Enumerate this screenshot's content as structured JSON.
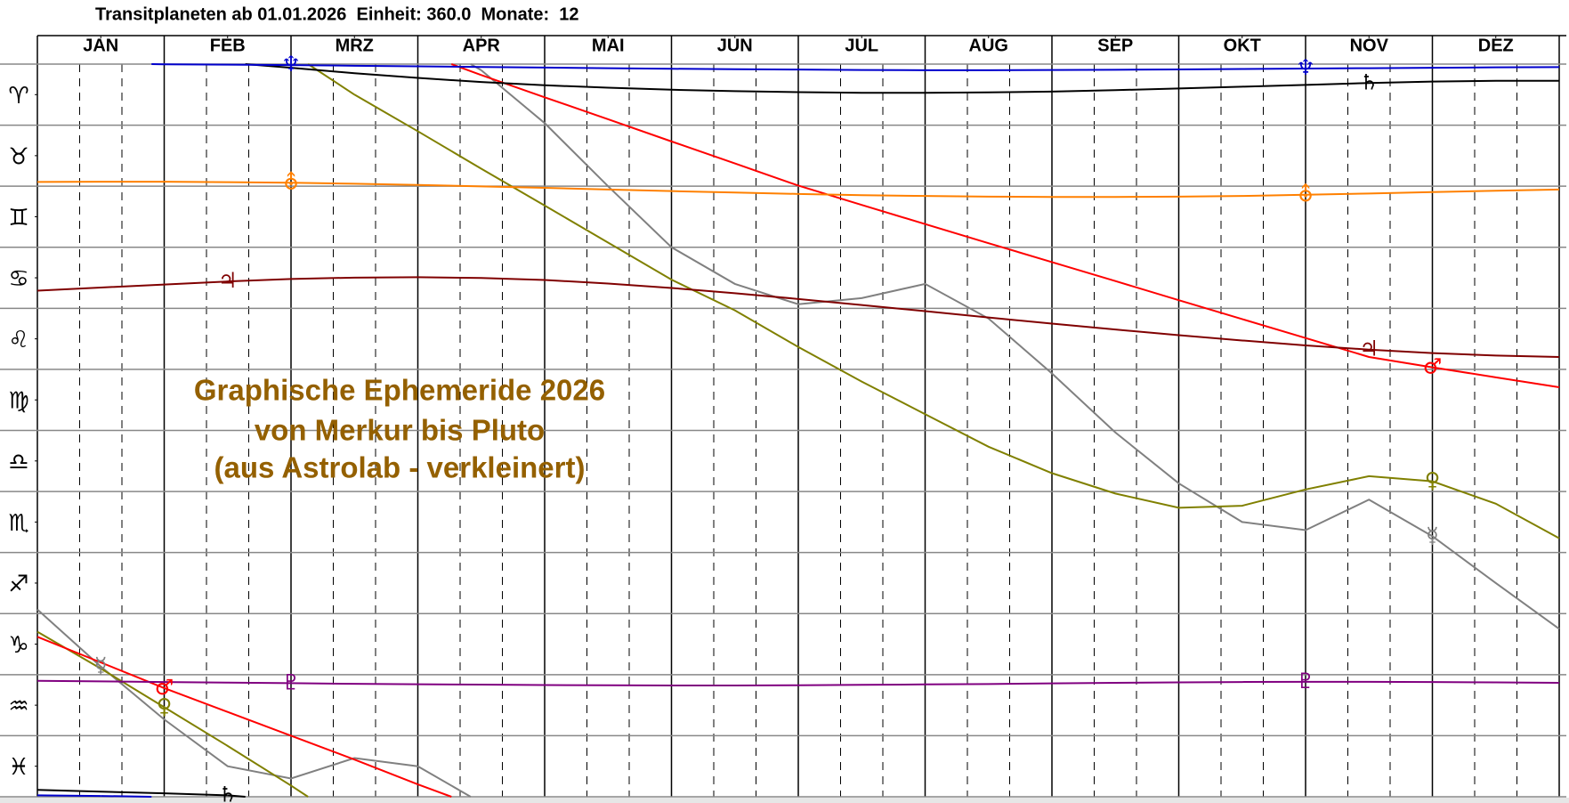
{
  "chart_data": {
    "type": "line",
    "title": "Transitplaneten ab 01.01.2026  Einheit: 360.0  Monate:  12",
    "annotation": [
      "Graphische Ephemeride 2026",
      "von Merkur bis Pluto",
      "(aus Astrolab - verkleinert)"
    ],
    "x": [
      0,
      0.5,
      1,
      1.5,
      2,
      2.5,
      3,
      3.5,
      4,
      4.5,
      5,
      5.5,
      6,
      6.5,
      7,
      7.5,
      8,
      8.5,
      9,
      9.5,
      10,
      10.5,
      11,
      11.5,
      12
    ],
    "xlim": [
      0,
      12
    ],
    "xticks": [
      {
        "value": 0.5,
        "label": "JAN"
      },
      {
        "value": 1.5,
        "label": "FEB"
      },
      {
        "value": 2.5,
        "label": "MRZ"
      },
      {
        "value": 3.5,
        "label": "APR"
      },
      {
        "value": 4.5,
        "label": "MAI"
      },
      {
        "value": 5.5,
        "label": "JUN"
      },
      {
        "value": 6.5,
        "label": "JUL"
      },
      {
        "value": 7.5,
        "label": "AUG"
      },
      {
        "value": 8.5,
        "label": "SEP"
      },
      {
        "value": 9.5,
        "label": "OKT"
      },
      {
        "value": 10.5,
        "label": "NOV"
      },
      {
        "value": 11.5,
        "label": "DEZ"
      }
    ],
    "ylim": [
      0,
      360
    ],
    "yticks": [
      {
        "value": 15,
        "label": "♈"
      },
      {
        "value": 45,
        "label": "♉"
      },
      {
        "value": 75,
        "label": "♊"
      },
      {
        "value": 105,
        "label": "♋"
      },
      {
        "value": 135,
        "label": "♌"
      },
      {
        "value": 165,
        "label": "♍"
      },
      {
        "value": 195,
        "label": "♎"
      },
      {
        "value": 225,
        "label": "♏"
      },
      {
        "value": 255,
        "label": "♐"
      },
      {
        "value": 285,
        "label": "♑"
      },
      {
        "value": 315,
        "label": "♒"
      },
      {
        "value": 345,
        "label": "♓"
      }
    ],
    "series": [
      {
        "name": "☿",
        "color": "#808080",
        "values": [
          268,
          296,
          322,
          345,
          351,
          341,
          345,
          3,
          29,
          60,
          90,
          108,
          118,
          115,
          108,
          125,
          152,
          181,
          206,
          225,
          229,
          214,
          232,
          255,
          277.5
        ]
      },
      {
        "name": "♀",
        "color": "#808000",
        "values": [
          278.9,
          297,
          316,
          335,
          354.5,
          15,
          33,
          51.4,
          69.5,
          87.7,
          105.9,
          121,
          139,
          156,
          172,
          188,
          201,
          211,
          218,
          217,
          209,
          202.5,
          205,
          216,
          233
        ]
      },
      {
        "name": "♂",
        "color": "#ff0000",
        "values": [
          281.4,
          294,
          306.6,
          318.3,
          330,
          341.7,
          353.9,
          5.4,
          16.3,
          27.1,
          38,
          48.8,
          59.7,
          69.2,
          78.6,
          88,
          97.3,
          106.6,
          116,
          125.3,
          134.6,
          143.9,
          149,
          153.9,
          158.8
        ]
      },
      {
        "name": "♃",
        "color": "#800000",
        "values": [
          111.3,
          109.8,
          108.3,
          106.8,
          105.6,
          104.9,
          104.7,
          105.1,
          106.1,
          107.8,
          110,
          112.6,
          115.4,
          118.4,
          121.4,
          124.5,
          127.5,
          130.4,
          133.2,
          135.8,
          138.2,
          140.3,
          142,
          143.2,
          143.9
        ]
      },
      {
        "name": "♄",
        "color": "#000000",
        "values": [
          356.6,
          357.5,
          358.3,
          359.3,
          1.8,
          4.5,
          6.8,
          8.8,
          10.4,
          11.6,
          12.6,
          13.3,
          13.8,
          14.1,
          14.1,
          13.9,
          13.5,
          12.8,
          12,
          11.1,
          10.2,
          9.3,
          8.6,
          8.2,
          8.2
        ]
      },
      {
        "name": "⛢",
        "color": "#ff8000",
        "values": [
          57.9,
          57.8,
          57.8,
          58,
          58.3,
          58.8,
          59.4,
          60.1,
          60.8,
          61.6,
          62.4,
          63.1,
          63.8,
          64.4,
          64.8,
          65.1,
          65.3,
          65.3,
          65.1,
          64.8,
          64.2,
          63.6,
          62.9,
          62.2,
          61.6
        ]
      },
      {
        "name": "♆",
        "color": "#0000cc",
        "values": [
          359.3,
          359.6,
          0.1,
          0.3,
          0.5,
          0.8,
          1.1,
          1.4,
          1.7,
          2,
          2.3,
          2.5,
          2.7,
          2.9,
          3,
          3,
          2.9,
          2.8,
          2.6,
          2.4,
          2.2,
          2,
          1.8,
          1.6,
          1.5
        ]
      },
      {
        "name": "♇",
        "color": "#800080",
        "values": [
          303,
          303.3,
          303.6,
          303.9,
          304.2,
          304.5,
          304.7,
          304.9,
          305.1,
          305.2,
          305.3,
          305.3,
          305.2,
          305,
          304.8,
          304.6,
          304.3,
          304,
          303.8,
          303.6,
          303.5,
          303.5,
          303.6,
          303.8,
          304
        ]
      }
    ]
  }
}
